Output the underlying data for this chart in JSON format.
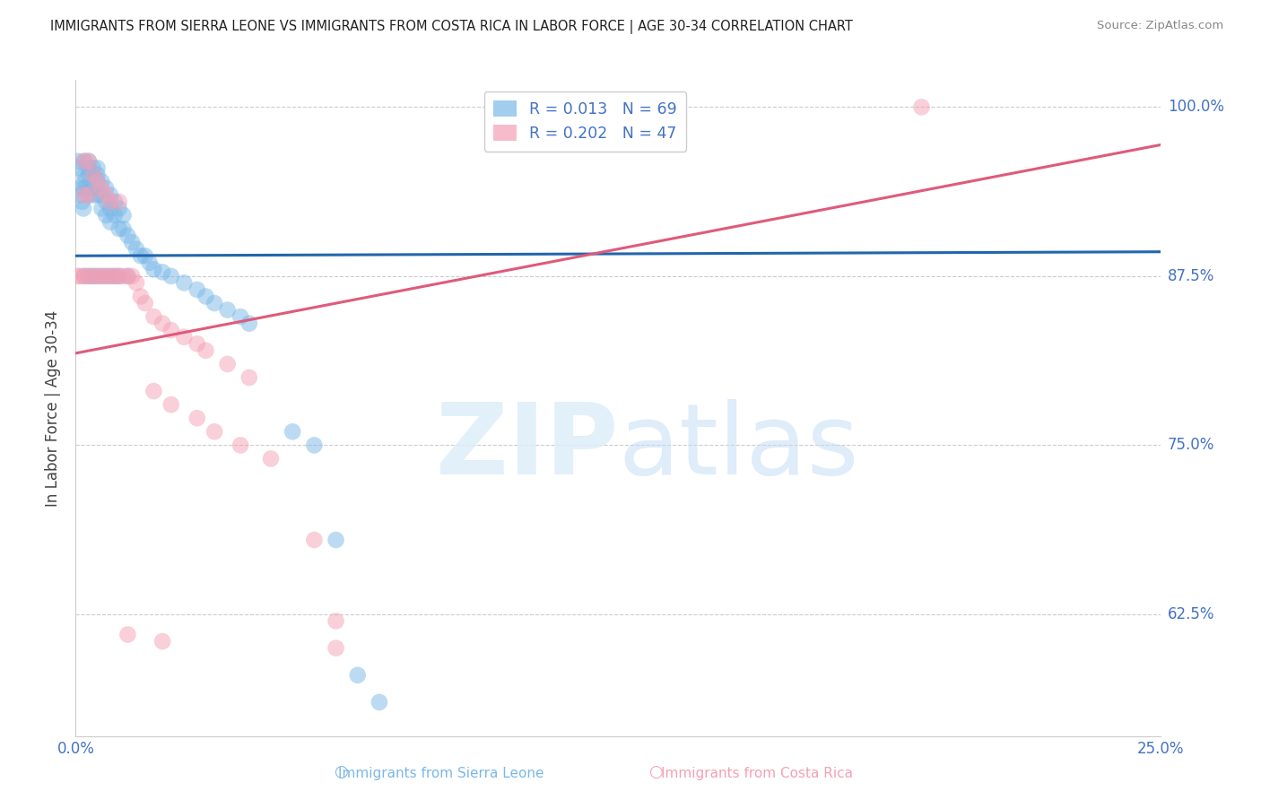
{
  "title": "IMMIGRANTS FROM SIERRA LEONE VS IMMIGRANTS FROM COSTA RICA IN LABOR FORCE | AGE 30-34 CORRELATION CHART",
  "source": "Source: ZipAtlas.com",
  "ylabel": "In Labor Force | Age 30-34",
  "xlim": [
    0.0,
    0.25
  ],
  "ylim": [
    0.535,
    1.02
  ],
  "yticks": [
    0.625,
    0.75,
    0.875,
    1.0
  ],
  "ytick_labels": [
    "62.5%",
    "75.0%",
    "87.5%",
    "100.0%"
  ],
  "xticks": [
    0.0,
    0.05,
    0.1,
    0.15,
    0.2,
    0.25
  ],
  "xtick_labels": [
    "0.0%",
    "",
    "",
    "",
    "",
    "25.0%"
  ],
  "legend_line1": "R = 0.013   N = 69",
  "legend_line2": "R = 0.202   N = 47",
  "sierra_leone_color": "#7ab8e8",
  "costa_rica_color": "#f4a0b5",
  "trend_sierra_color": "#2166ac",
  "trend_costa_color": "#e05a7a",
  "background_color": "#ffffff",
  "grid_color": "#cccccc",
  "tick_label_color": "#4472c4",
  "ylabel_color": "#444444",
  "title_color": "#222222",
  "source_color": "#888888",
  "legend_text_color": "#4472c4",
  "bottom_label_sl_color": "#7ab8e8",
  "bottom_label_cr_color": "#f4a0b5",
  "bottom_label_sl": "Immigrants from Sierra Leone",
  "bottom_label_cr": "Immigrants from Costa Rica",
  "sierra_leone_trend_x": [
    0.0,
    0.25
  ],
  "sierra_leone_trend_y": [
    0.89,
    0.893
  ],
  "costa_rica_trend_x": [
    0.0,
    0.25
  ],
  "costa_rica_trend_y": [
    0.818,
    0.972
  ],
  "sl_x": [
    0.0005,
    0.0008,
    0.001,
    0.0012,
    0.0015,
    0.0018,
    0.002,
    0.002,
    0.002,
    0.002,
    0.003,
    0.003,
    0.003,
    0.003,
    0.003,
    0.004,
    0.004,
    0.004,
    0.004,
    0.005,
    0.005,
    0.005,
    0.005,
    0.006,
    0.006,
    0.006,
    0.007,
    0.007,
    0.007,
    0.008,
    0.008,
    0.008,
    0.009,
    0.009,
    0.01,
    0.01,
    0.011,
    0.011,
    0.012,
    0.013,
    0.014,
    0.015,
    0.016,
    0.017,
    0.018,
    0.02,
    0.022,
    0.025,
    0.028,
    0.03,
    0.032,
    0.035,
    0.038,
    0.04,
    0.002,
    0.003,
    0.004,
    0.005,
    0.006,
    0.007,
    0.008,
    0.009,
    0.01,
    0.012,
    0.05,
    0.055,
    0.06,
    0.065,
    0.07
  ],
  "sl_y": [
    0.96,
    0.955,
    0.94,
    0.935,
    0.93,
    0.925,
    0.96,
    0.95,
    0.945,
    0.94,
    0.96,
    0.955,
    0.95,
    0.94,
    0.935,
    0.955,
    0.95,
    0.94,
    0.935,
    0.955,
    0.95,
    0.945,
    0.935,
    0.945,
    0.935,
    0.925,
    0.94,
    0.93,
    0.92,
    0.935,
    0.925,
    0.915,
    0.93,
    0.92,
    0.925,
    0.91,
    0.92,
    0.91,
    0.905,
    0.9,
    0.895,
    0.89,
    0.89,
    0.885,
    0.88,
    0.878,
    0.875,
    0.87,
    0.865,
    0.86,
    0.855,
    0.85,
    0.845,
    0.84,
    0.875,
    0.875,
    0.875,
    0.875,
    0.875,
    0.875,
    0.875,
    0.875,
    0.875,
    0.875,
    0.76,
    0.75,
    0.68,
    0.58,
    0.56
  ],
  "cr_x": [
    0.0005,
    0.001,
    0.002,
    0.002,
    0.002,
    0.003,
    0.003,
    0.003,
    0.004,
    0.004,
    0.005,
    0.005,
    0.006,
    0.006,
    0.007,
    0.007,
    0.008,
    0.008,
    0.009,
    0.01,
    0.01,
    0.011,
    0.012,
    0.013,
    0.014,
    0.015,
    0.016,
    0.018,
    0.02,
    0.022,
    0.025,
    0.028,
    0.03,
    0.035,
    0.04,
    0.018,
    0.022,
    0.028,
    0.032,
    0.038,
    0.045,
    0.055,
    0.06,
    0.012,
    0.02,
    0.195,
    0.06
  ],
  "cr_y": [
    0.875,
    0.875,
    0.96,
    0.935,
    0.875,
    0.96,
    0.935,
    0.875,
    0.95,
    0.875,
    0.945,
    0.875,
    0.94,
    0.875,
    0.935,
    0.875,
    0.93,
    0.875,
    0.875,
    0.93,
    0.875,
    0.875,
    0.875,
    0.875,
    0.87,
    0.86,
    0.855,
    0.845,
    0.84,
    0.835,
    0.83,
    0.825,
    0.82,
    0.81,
    0.8,
    0.79,
    0.78,
    0.77,
    0.76,
    0.75,
    0.74,
    0.68,
    0.62,
    0.61,
    0.605,
    1.0,
    0.6
  ]
}
